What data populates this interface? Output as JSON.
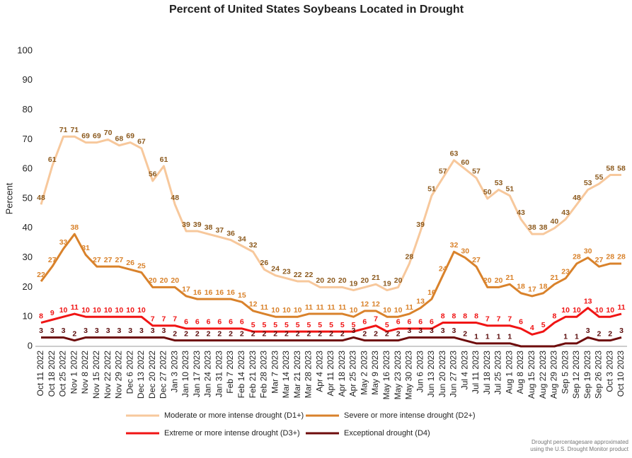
{
  "chart_data": {
    "type": "line",
    "title": "Percent of United States Soybeans Located in Drought",
    "y_label": "Percent",
    "note": [
      "Drought percentagesare approximated",
      "using the U.S. Drought Monitor product"
    ],
    "categories": [
      "Oct 11 2022",
      "Oct 18 2022",
      "Oct 25 2022",
      "Nov 1 2022",
      "Nov 8 2022",
      "Nov 15 2022",
      "Nov 22 2022",
      "Nov 29 2022",
      "Dec 6 2022",
      "Dec 13 2022",
      "Dec 20 2022",
      "Dec 27 2022",
      "Jan 3 2023",
      "Jan 10 2023",
      "Jan 17 2023",
      "Jan 24 2023",
      "Jan 31 2023",
      "Feb 7 2023",
      "Feb 14 2023",
      "Feb 21 2023",
      "Feb 28 2023",
      "Mar 7 2023",
      "Mar 14 2023",
      "Mar 21 2023",
      "Mar 28 2023",
      "Apr 4 2023",
      "Apr 11 2023",
      "Apr 18 2023",
      "Apr 25 2023",
      "May 2 2023",
      "May 9 2023",
      "May 16 2023",
      "May 23 2023",
      "May 30 2023",
      "Jun 6 2023",
      "Jun 13 2023",
      "Jun 20 2023",
      "Jun 27 2023",
      "Jul 4 2023",
      "Jul 11 2023",
      "Jul 18 2023",
      "Jul 25 2023",
      "Aug 1 2023",
      "Aug 8 2023",
      "Aug 15 2023",
      "Aug 22 2023",
      "Aug 29 2023",
      "Sep 5 2023",
      "Sep 12 2023",
      "Sep 19 2023",
      "Sep 26 2023",
      "Oct 3 2023",
      "Oct 10 2023"
    ],
    "series": [
      {
        "name": "Moderate or more intense drought (D1+)",
        "color": "#f7c89c",
        "label_color": "#8c5a1e",
        "values": [
          48,
          61,
          71,
          71,
          69,
          69,
          70,
          68,
          69,
          67,
          56,
          61,
          48,
          39,
          39,
          38,
          37,
          36,
          34,
          32,
          26,
          24,
          23,
          22,
          22,
          20,
          20,
          20,
          19,
          20,
          21,
          19,
          20,
          28,
          39,
          51,
          57,
          63,
          60,
          57,
          50,
          53,
          51,
          43,
          38,
          38,
          40,
          43,
          48,
          53,
          55,
          58,
          58
        ]
      },
      {
        "name": "Severe or more intense drought (D2+)",
        "color": "#d9822b",
        "label_color": "#d9822b",
        "values": [
          22,
          27,
          33,
          38,
          31,
          27,
          27,
          27,
          26,
          25,
          20,
          20,
          20,
          17,
          16,
          16,
          16,
          16,
          15,
          12,
          11,
          10,
          10,
          10,
          11,
          11,
          11,
          11,
          10,
          12,
          12,
          10,
          10,
          11,
          13,
          16,
          24,
          32,
          30,
          27,
          20,
          20,
          21,
          18,
          17,
          18,
          21,
          23,
          28,
          30,
          27,
          28,
          28
        ]
      },
      {
        "name": "Extreme or more intense drought (D3+)",
        "color": "#f01414",
        "label_color": "#f01414",
        "values": [
          8,
          9,
          10,
          11,
          10,
          10,
          10,
          10,
          10,
          10,
          7,
          7,
          7,
          6,
          6,
          6,
          6,
          6,
          6,
          5,
          5,
          5,
          5,
          5,
          5,
          5,
          5,
          5,
          5,
          6,
          7,
          5,
          6,
          6,
          6,
          6,
          8,
          8,
          8,
          8,
          7,
          7,
          7,
          6,
          4,
          5,
          8,
          10,
          10,
          13,
          10,
          10,
          11
        ]
      },
      {
        "name": "Exceptional drought (D4)",
        "color": "#6e0c0c",
        "label_color": "#5a0a0a",
        "values": [
          3,
          3,
          3,
          2,
          3,
          3,
          3,
          3,
          3,
          3,
          3,
          3,
          2,
          2,
          2,
          2,
          2,
          2,
          2,
          2,
          2,
          2,
          2,
          2,
          2,
          2,
          2,
          2,
          3,
          2,
          2,
          2,
          2,
          3,
          3,
          3,
          3,
          3,
          2,
          1,
          1,
          1,
          1,
          0,
          0,
          0,
          0,
          1,
          1,
          3,
          2,
          2,
          3
        ],
        "value_labels": [
          3,
          3,
          3,
          2,
          3,
          3,
          3,
          3,
          3,
          3,
          3,
          3,
          2,
          2,
          2,
          2,
          2,
          2,
          2,
          2,
          2,
          2,
          2,
          2,
          2,
          2,
          2,
          2,
          3,
          2,
          2,
          2,
          2,
          3,
          3,
          3,
          3,
          3,
          2,
          1,
          1,
          1,
          1,
          null,
          null,
          null,
          null,
          1,
          1,
          3,
          2,
          2,
          3
        ]
      }
    ],
    "ylim": [
      0,
      100
    ],
    "yticks": [
      0,
      10,
      20,
      30,
      40,
      50,
      60,
      70,
      80,
      90,
      100
    ],
    "grid": false
  }
}
